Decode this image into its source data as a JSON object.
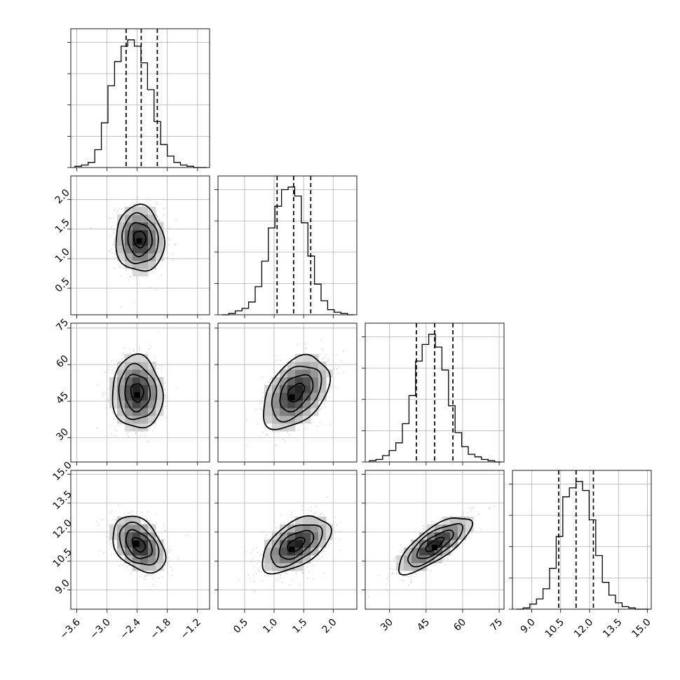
{
  "chart_data": {
    "type": "corner",
    "parameters": [
      {
        "id": "p0",
        "label": "",
        "range": [
          -3.72,
          -0.96
        ],
        "ticks": [
          "−3.6",
          "−3.0",
          "−2.4",
          "−1.8",
          "−1.2"
        ],
        "tick_values": [
          -3.6,
          -3.0,
          -2.4,
          -1.8,
          -1.2
        ],
        "histogram_bins": [
          0.01,
          0.02,
          0.04,
          0.14,
          0.35,
          0.64,
          0.83,
          0.95,
          1.0,
          0.95,
          0.82,
          0.61,
          0.36,
          0.18,
          0.09,
          0.04,
          0.02,
          0.01,
          0.0,
          0.0
        ],
        "quantiles": [
          -2.62,
          -2.32,
          -2.0
        ]
      },
      {
        "id": "p1",
        "label": "",
        "range": [
          0.05,
          2.4
        ],
        "ticks": [
          "0.5",
          "1.0",
          "1.5",
          "2.0"
        ],
        "tick_values": [
          0.5,
          1.0,
          1.5,
          2.0
        ],
        "histogram_bins": [
          0.0,
          0.01,
          0.03,
          0.05,
          0.1,
          0.22,
          0.42,
          0.68,
          0.85,
          0.98,
          1.0,
          0.93,
          0.72,
          0.46,
          0.24,
          0.11,
          0.04,
          0.02,
          0.01,
          0.0
        ],
        "quantiles": [
          1.05,
          1.33,
          1.62
        ]
      },
      {
        "id": "p2",
        "label": "",
        "range": [
          20,
          77
        ],
        "ticks": [
          "30",
          "45",
          "60",
          "75"
        ],
        "tick_values": [
          30,
          45,
          60,
          75
        ],
        "histogram_bins": [
          0.01,
          0.02,
          0.05,
          0.09,
          0.15,
          0.3,
          0.52,
          0.79,
          0.92,
          1.0,
          0.9,
          0.72,
          0.44,
          0.23,
          0.12,
          0.06,
          0.04,
          0.02,
          0.01,
          0.0
        ],
        "quantiles": [
          41,
          48.5,
          56
        ]
      },
      {
        "id": "p3",
        "label": "",
        "range": [
          8.0,
          15.2
        ],
        "ticks": [
          "9.0",
          "10.5",
          "12.0",
          "13.5",
          "15.0"
        ],
        "tick_values": [
          9.0,
          10.5,
          12.0,
          13.5,
          15.0
        ],
        "histogram_bins": [
          0.0,
          0.01,
          0.04,
          0.08,
          0.16,
          0.32,
          0.57,
          0.88,
          0.95,
          1.0,
          0.93,
          0.7,
          0.42,
          0.21,
          0.11,
          0.05,
          0.02,
          0.01,
          0.0,
          0.0
        ],
        "quantiles": [
          10.4,
          11.3,
          12.2
        ]
      }
    ],
    "histogram_y_ticks": 4,
    "pairs": [
      {
        "row": 1,
        "col": 0,
        "center": [
          -2.35,
          1.33
        ],
        "sigma": [
          0.24,
          0.28
        ],
        "corr": -0.05,
        "mode": [
          -2.36,
          1.3
        ]
      },
      {
        "row": 2,
        "col": 0,
        "center": [
          -2.4,
          48.5
        ],
        "sigma": [
          0.25,
          7.5
        ],
        "corr": -0.05,
        "mode": [
          -2.4,
          47.5
        ]
      },
      {
        "row": 2,
        "col": 1,
        "center": [
          1.37,
          48.5
        ],
        "sigma": [
          0.28,
          7.5
        ],
        "corr": 0.42,
        "mode": [
          1.3,
          46.5
        ]
      },
      {
        "row": 3,
        "col": 0,
        "center": [
          -2.37,
          11.35
        ],
        "sigma": [
          0.26,
          0.73
        ],
        "corr": -0.38,
        "mode": [
          -2.42,
          11.4
        ]
      },
      {
        "row": 3,
        "col": 1,
        "center": [
          1.37,
          11.35
        ],
        "sigma": [
          0.29,
          0.73
        ],
        "corr": 0.53,
        "mode": [
          1.3,
          11.1
        ]
      },
      {
        "row": 3,
        "col": 2,
        "center": [
          48.5,
          11.35
        ],
        "sigma": [
          7.5,
          0.73
        ],
        "corr": 0.76,
        "mode": [
          48.5,
          11.2
        ]
      }
    ],
    "contour_levels_sigma": [
      0.5,
      1.0,
      1.5,
      2.0
    ],
    "scatter_points_per_panel": 700,
    "density_shading": "greyscale"
  }
}
